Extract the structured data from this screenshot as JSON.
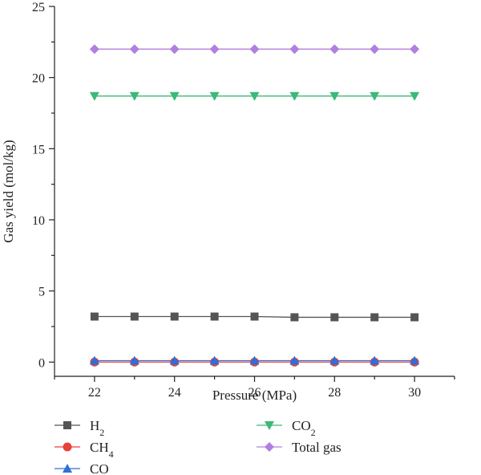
{
  "chart_data": {
    "type": "line",
    "title": "",
    "xlabel": "Pressure (MPa)",
    "ylabel": "Gas yield (mol/kg)",
    "xlim": [
      21,
      31
    ],
    "ylim": [
      -1,
      25
    ],
    "x_ticks": [
      22,
      24,
      26,
      28,
      30
    ],
    "y_ticks": [
      0,
      5,
      10,
      15,
      20,
      25
    ],
    "x": [
      22,
      23,
      24,
      25,
      26,
      27,
      28,
      29,
      30
    ],
    "series": [
      {
        "name": "H",
        "sub": "2",
        "marker": "square",
        "color": "#555555",
        "values": [
          3.2,
          3.2,
          3.2,
          3.2,
          3.2,
          3.15,
          3.15,
          3.15,
          3.15
        ]
      },
      {
        "name": "CH",
        "sub": "4",
        "marker": "circle",
        "color": "#e8413a",
        "values": [
          0.0,
          0.0,
          0.0,
          0.0,
          0.0,
          0.0,
          0.0,
          0.0,
          0.0
        ]
      },
      {
        "name": "CO",
        "sub": "",
        "marker": "triangle-up",
        "color": "#2f6fd6",
        "values": [
          0.1,
          0.1,
          0.1,
          0.1,
          0.1,
          0.1,
          0.1,
          0.1,
          0.1
        ]
      },
      {
        "name": "CO",
        "sub": "2",
        "marker": "triangle-down",
        "color": "#3cb878",
        "values": [
          18.7,
          18.7,
          18.7,
          18.7,
          18.7,
          18.7,
          18.7,
          18.7,
          18.7
        ]
      },
      {
        "name": "Total gas",
        "sub": "",
        "marker": "diamond",
        "color": "#b07fe0",
        "values": [
          22.0,
          22.0,
          22.0,
          22.0,
          22.0,
          22.0,
          22.0,
          22.0,
          22.0
        ]
      }
    ],
    "legend_position": "bottom",
    "grid": false
  }
}
